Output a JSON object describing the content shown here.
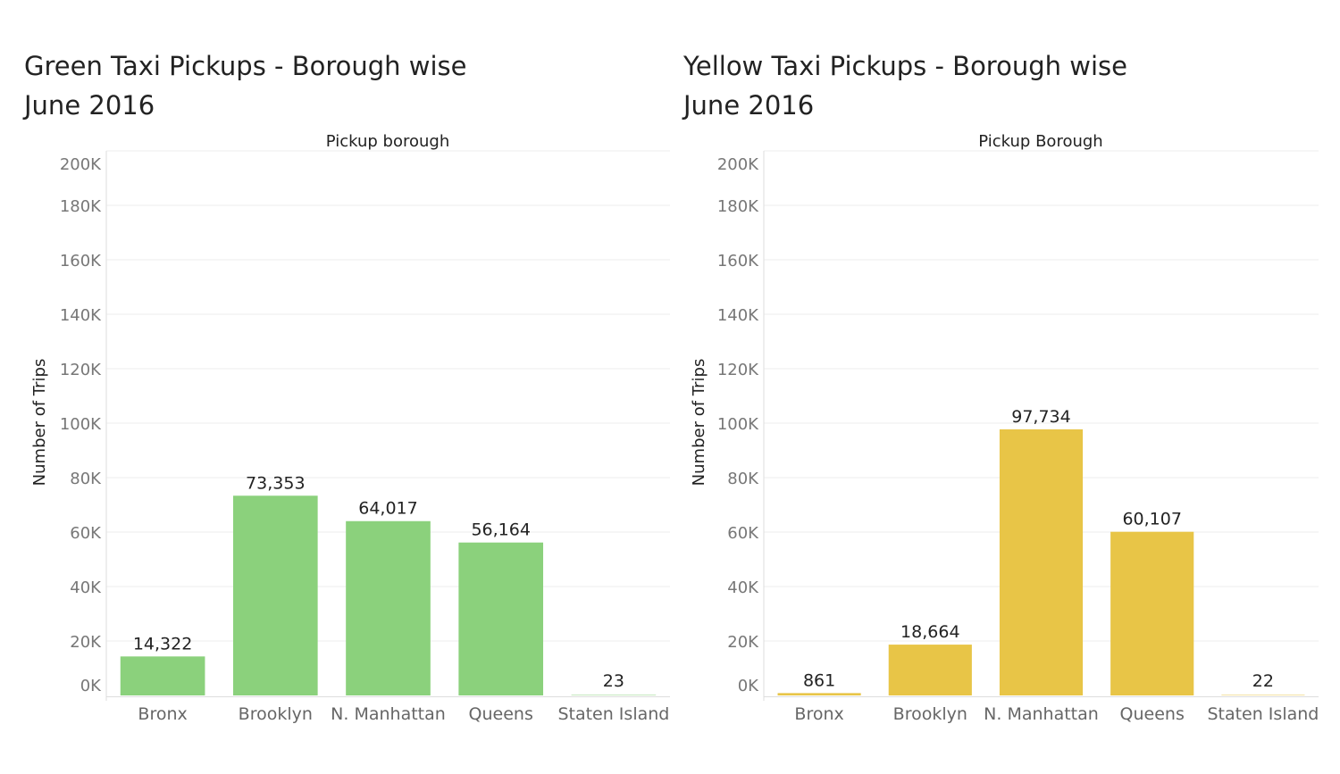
{
  "chart_data": [
    {
      "type": "bar",
      "title_line1": "Green Taxi Pickups - Borough wise",
      "title_line2": "June 2016",
      "header": "Pickup borough",
      "ylabel": "Number of Trips",
      "ylim": [
        0,
        200000
      ],
      "yticks": [
        0,
        20000,
        40000,
        60000,
        80000,
        100000,
        120000,
        140000,
        160000,
        180000,
        200000
      ],
      "ytick_labels": [
        "0K",
        "20K",
        "40K",
        "60K",
        "80K",
        "100K",
        "120K",
        "140K",
        "160K",
        "180K",
        "200K"
      ],
      "categories": [
        "Bronx",
        "Brooklyn",
        "N. Manhattan",
        "Queens",
        "Staten Island"
      ],
      "values": [
        14322,
        73353,
        64017,
        56164,
        23
      ],
      "value_labels": [
        "14,322",
        "73,353",
        "64,017",
        "56,164",
        "23"
      ],
      "color": "#8bd17c",
      "grid": true
    },
    {
      "type": "bar",
      "title_line1": "Yellow Taxi Pickups - Borough wise",
      "title_line2": "June 2016",
      "header": "Pickup Borough",
      "ylabel": "Number of Trips",
      "ylim": [
        0,
        200000
      ],
      "yticks": [
        0,
        20000,
        40000,
        60000,
        80000,
        100000,
        120000,
        140000,
        160000,
        180000,
        200000
      ],
      "ytick_labels": [
        "0K",
        "20K",
        "40K",
        "60K",
        "80K",
        "100K",
        "120K",
        "140K",
        "160K",
        "180K",
        "200K"
      ],
      "categories": [
        "Bronx",
        "Brooklyn",
        "N. Manhattan",
        "Queens",
        "Staten Island"
      ],
      "values": [
        861,
        18664,
        97734,
        60107,
        22
      ],
      "value_labels": [
        "861",
        "18,664",
        "97,734",
        "60,107",
        "22"
      ],
      "color": "#e8c547",
      "grid": true
    }
  ]
}
